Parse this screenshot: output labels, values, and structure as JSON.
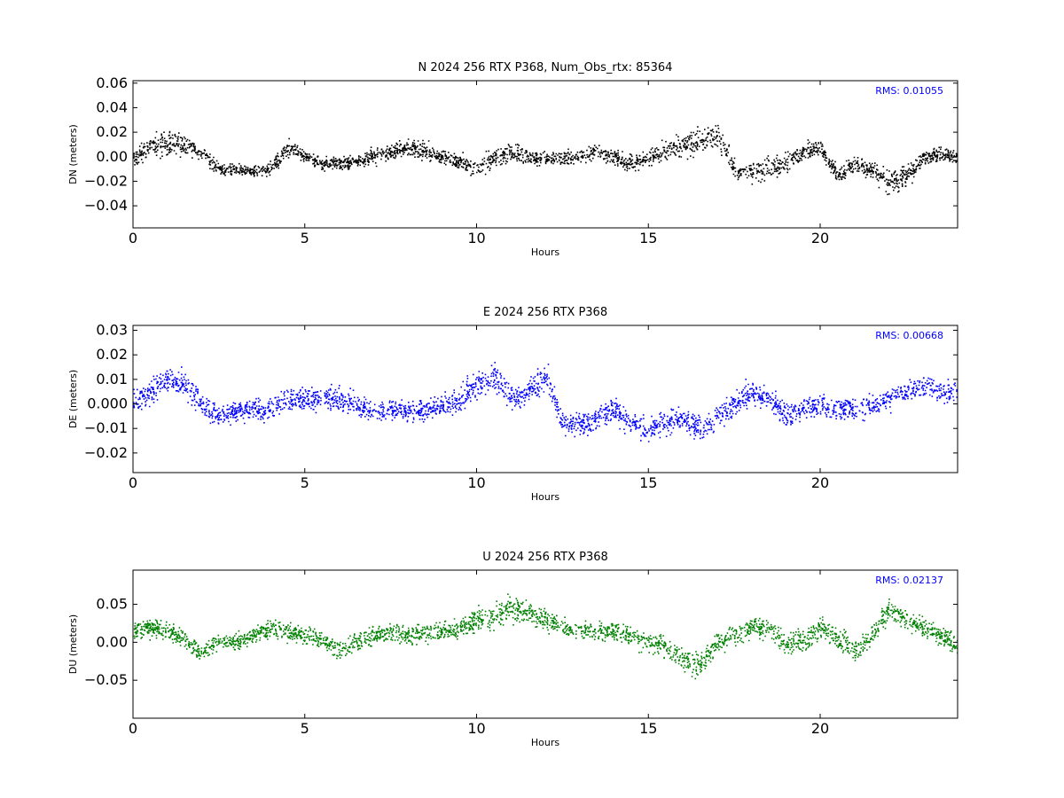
{
  "chart_data": [
    {
      "type": "scatter",
      "title": "N 2024 256 RTX  P368, Num_Obs_rtx: 85364",
      "xlabel": "Hours",
      "ylabel": "DN (meters)",
      "xlim": [
        0,
        24
      ],
      "ylim": [
        -0.058,
        0.062
      ],
      "xticks": [
        0,
        5,
        10,
        15,
        20
      ],
      "yticks": [
        -0.04,
        -0.02,
        0.0,
        0.02,
        0.04,
        0.06
      ],
      "ytick_labels": [
        "−0.04",
        "−0.02",
        "0.00",
        "0.02",
        "0.04",
        "0.06"
      ],
      "color": "#000000",
      "annotation": "RMS:  0.01055",
      "annotation_color": "#0000ff",
      "grid": false,
      "series": [
        {
          "x": [
            0,
            0.5,
            1,
            1.5,
            2,
            2.5,
            3,
            3.5,
            4,
            4.5,
            5,
            5.5,
            6,
            6.5,
            7,
            7.5,
            8,
            8.5,
            9,
            9.5,
            10,
            10.5,
            11,
            11.5,
            12,
            12.5,
            13,
            13.5,
            14,
            14.5,
            15,
            15.5,
            16,
            16.5,
            17,
            17.5,
            18,
            18.5,
            19,
            19.5,
            20,
            20.5,
            21,
            21.5,
            22,
            22.5,
            23,
            23.5,
            24
          ],
          "y": [
            0.0,
            0.008,
            0.012,
            0.01,
            0.003,
            -0.01,
            -0.01,
            -0.012,
            -0.01,
            0.008,
            0.0,
            -0.005,
            -0.005,
            -0.003,
            0.0,
            0.005,
            0.008,
            0.005,
            0.0,
            -0.003,
            -0.01,
            0.0,
            0.003,
            0.0,
            -0.002,
            0.0,
            0.0,
            0.005,
            0.0,
            -0.005,
            0.0,
            0.005,
            0.01,
            0.012,
            0.018,
            -0.01,
            -0.012,
            -0.008,
            -0.005,
            0.005,
            0.008,
            -0.015,
            -0.005,
            -0.01,
            -0.02,
            -0.015,
            0.0,
            0.002,
            0.0
          ],
          "spread": [
            0.008,
            0.01,
            0.016,
            0.01,
            0.008,
            0.006,
            0.006,
            0.006,
            0.007,
            0.008,
            0.006,
            0.006,
            0.006,
            0.006,
            0.008,
            0.008,
            0.008,
            0.008,
            0.008,
            0.008,
            0.01,
            0.01,
            0.01,
            0.007,
            0.006,
            0.007,
            0.007,
            0.008,
            0.008,
            0.009,
            0.008,
            0.01,
            0.012,
            0.012,
            0.012,
            0.008,
            0.01,
            0.012,
            0.01,
            0.008,
            0.008,
            0.008,
            0.008,
            0.01,
            0.013,
            0.012,
            0.008,
            0.007,
            0.008
          ]
        }
      ]
    },
    {
      "type": "scatter",
      "title": "E 2024 256 RTX  P368",
      "xlabel": "Hours",
      "ylabel": "DE (meters)",
      "xlim": [
        0,
        24
      ],
      "ylim": [
        -0.028,
        0.032
      ],
      "xticks": [
        0,
        5,
        10,
        15,
        20
      ],
      "yticks": [
        -0.02,
        -0.01,
        0.0,
        0.01,
        0.02,
        0.03
      ],
      "ytick_labels": [
        "−0.02",
        "−0.01",
        "0.000",
        "0.01",
        "0.02",
        "0.03"
      ],
      "color": "#0000ff",
      "annotation": "RMS:  0.00668",
      "annotation_color": "#0000ff",
      "grid": false,
      "series": [
        {
          "x": [
            0,
            0.5,
            1,
            1.5,
            2,
            2.5,
            3,
            3.5,
            4,
            4.5,
            5,
            5.5,
            6,
            6.5,
            7,
            7.5,
            8,
            8.5,
            9,
            9.5,
            10,
            10.5,
            11,
            11.5,
            12,
            12.5,
            13,
            13.5,
            14,
            14.5,
            15,
            15.5,
            16,
            16.5,
            17,
            17.5,
            18,
            18.5,
            19,
            19.5,
            20,
            20.5,
            21,
            21.5,
            22,
            22.5,
            23,
            23.5,
            24
          ],
          "y": [
            0.002,
            0.005,
            0.01,
            0.008,
            0.0,
            -0.005,
            -0.003,
            -0.002,
            -0.002,
            0.002,
            0.002,
            0.003,
            0.002,
            0.0,
            -0.003,
            -0.002,
            -0.003,
            -0.002,
            0.0,
            0.002,
            0.008,
            0.012,
            0.003,
            0.005,
            0.012,
            -0.008,
            -0.008,
            -0.005,
            -0.002,
            -0.008,
            -0.01,
            -0.008,
            -0.005,
            -0.01,
            -0.005,
            0.0,
            0.005,
            0.003,
            -0.005,
            -0.002,
            0.0,
            -0.002,
            -0.002,
            0.0,
            0.002,
            0.005,
            0.008,
            0.005,
            0.005
          ],
          "spread": [
            0.006,
            0.006,
            0.006,
            0.006,
            0.006,
            0.005,
            0.005,
            0.005,
            0.005,
            0.006,
            0.006,
            0.006,
            0.006,
            0.006,
            0.005,
            0.005,
            0.005,
            0.005,
            0.005,
            0.006,
            0.007,
            0.008,
            0.006,
            0.006,
            0.007,
            0.006,
            0.006,
            0.006,
            0.006,
            0.006,
            0.006,
            0.006,
            0.006,
            0.007,
            0.006,
            0.006,
            0.006,
            0.006,
            0.006,
            0.006,
            0.006,
            0.006,
            0.006,
            0.006,
            0.006,
            0.006,
            0.006,
            0.006,
            0.006
          ]
        }
      ]
    },
    {
      "type": "scatter",
      "title": "U 2024 256 RTX  P368",
      "xlabel": "Hours",
      "ylabel": "DU (meters)",
      "xlim": [
        0,
        24
      ],
      "ylim": [
        -0.1,
        0.095
      ],
      "xticks": [
        0,
        5,
        10,
        15,
        20
      ],
      "yticks": [
        -0.05,
        0.0,
        0.05
      ],
      "ytick_labels": [
        "−0.05",
        "0.00",
        "0.05"
      ],
      "color": "#008000",
      "annotation": "RMS:  0.02137",
      "annotation_color": "#0000ff",
      "grid": false,
      "series": [
        {
          "x": [
            0,
            0.5,
            1,
            1.5,
            2,
            2.5,
            3,
            3.5,
            4,
            4.5,
            5,
            5.5,
            6,
            6.5,
            7,
            7.5,
            8,
            8.5,
            9,
            9.5,
            10,
            10.5,
            11,
            11.5,
            12,
            12.5,
            13,
            13.5,
            14,
            14.5,
            15,
            15.5,
            16,
            16.5,
            17,
            17.5,
            18,
            18.5,
            19,
            19.5,
            20,
            20.5,
            21,
            21.5,
            22,
            22.5,
            23,
            23.5,
            24
          ],
          "y": [
            0.015,
            0.02,
            0.015,
            0.005,
            -0.015,
            0.005,
            0.0,
            0.01,
            0.02,
            0.015,
            0.01,
            0.005,
            -0.01,
            0.0,
            0.01,
            0.015,
            0.01,
            0.015,
            0.015,
            0.02,
            0.03,
            0.035,
            0.045,
            0.04,
            0.03,
            0.02,
            0.015,
            0.015,
            0.015,
            0.01,
            0.0,
            -0.005,
            -0.02,
            -0.03,
            0.0,
            0.01,
            0.02,
            0.02,
            0.0,
            0.0,
            0.02,
            0.005,
            -0.01,
            0.01,
            0.045,
            0.03,
            0.02,
            0.01,
            -0.005
          ],
          "spread": [
            0.015,
            0.015,
            0.015,
            0.015,
            0.015,
            0.014,
            0.014,
            0.014,
            0.015,
            0.015,
            0.015,
            0.015,
            0.015,
            0.015,
            0.015,
            0.015,
            0.015,
            0.015,
            0.015,
            0.016,
            0.018,
            0.02,
            0.02,
            0.018,
            0.016,
            0.015,
            0.015,
            0.015,
            0.015,
            0.015,
            0.016,
            0.018,
            0.02,
            0.022,
            0.016,
            0.016,
            0.018,
            0.018,
            0.02,
            0.02,
            0.018,
            0.016,
            0.018,
            0.018,
            0.02,
            0.018,
            0.016,
            0.016,
            0.016
          ]
        }
      ]
    }
  ]
}
